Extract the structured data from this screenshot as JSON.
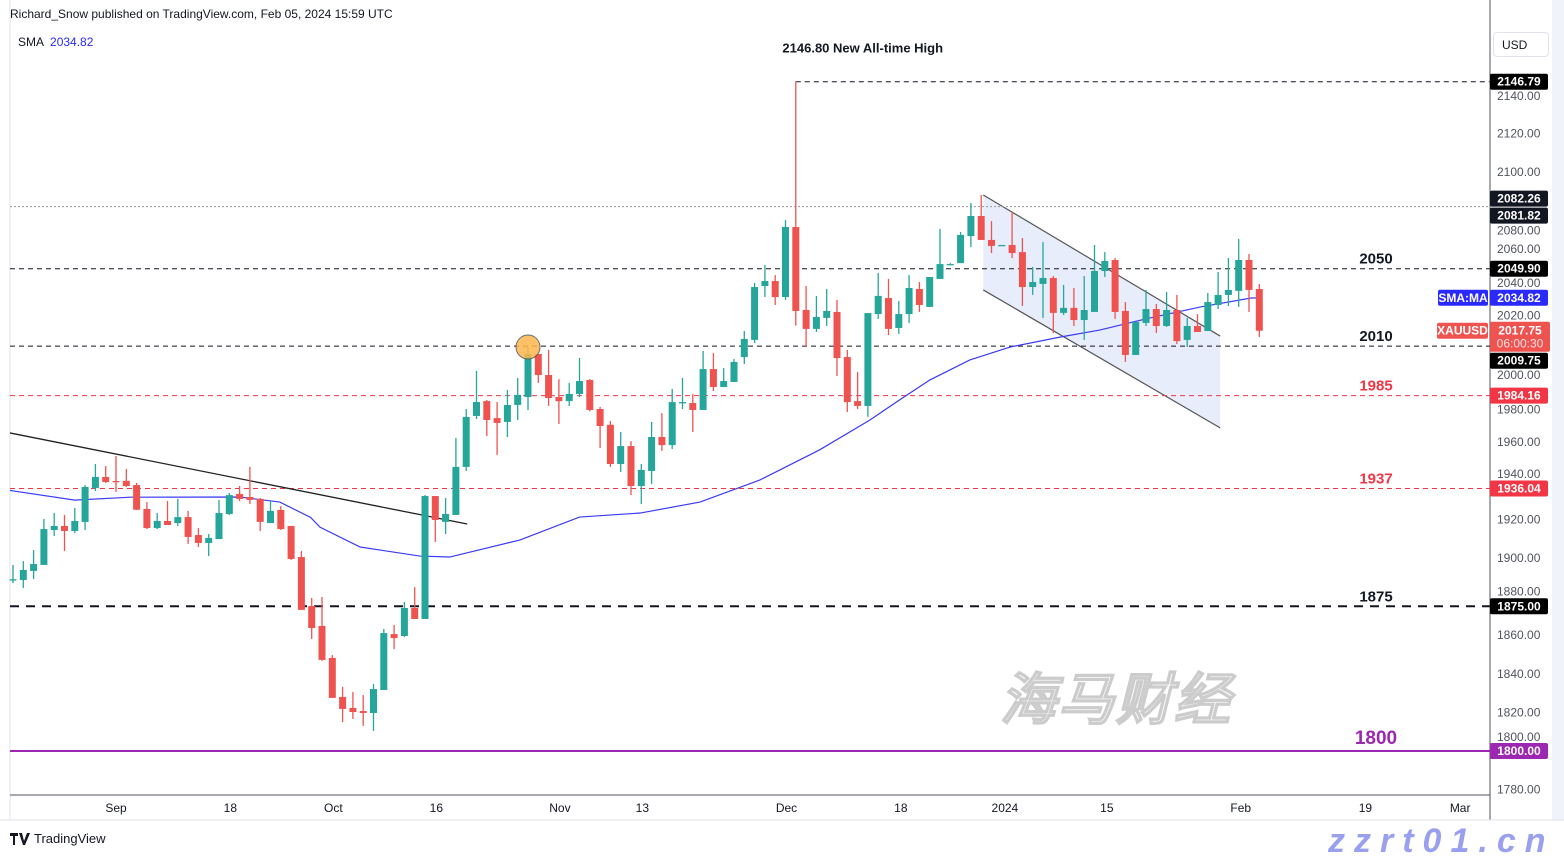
{
  "header": {
    "published": "Richard_Snow published on TradingView.com, Feb 05, 2024 15:59 UTC"
  },
  "legend": {
    "indicator": "SMA",
    "value": "2034.82"
  },
  "currency": "USD",
  "footer": {
    "brand": "TradingView"
  },
  "watermark": {
    "cn": "海马财经",
    "site": "zzrt01.cn"
  },
  "colors": {
    "up": "#26a69a",
    "down": "#ef5350",
    "sma": "#3a3af7",
    "channel_fill": "#e6ebfc",
    "purple": "#9c27b0",
    "red_level": "#f23645"
  },
  "chart_data": {
    "type": "candlestick",
    "symbol": "XAUUSD",
    "ylim": [
      1775,
      2155
    ],
    "y_ticks": [
      "2140.00",
      "2120.00",
      "2100.00",
      "2080.00",
      "2060.00",
      "2040.00",
      "2020.00",
      "2000.00",
      "1980.00",
      "1960.00",
      "1940.00",
      "1920.00",
      "1900.00",
      "1880.00",
      "1860.00",
      "1840.00",
      "1820.00",
      "1800.00",
      "1780.00"
    ],
    "x_ticks": [
      {
        "label": "Sep",
        "bar": 11
      },
      {
        "label": "18",
        "bar": 22.1
      },
      {
        "label": "Oct",
        "bar": 32.1
      },
      {
        "label": "16",
        "bar": 42.1
      },
      {
        "label": "Nov",
        "bar": 54.1
      },
      {
        "label": "13",
        "bar": 62.1
      },
      {
        "label": "Dec",
        "bar": 76.1
      },
      {
        "label": "18",
        "bar": 87.2
      },
      {
        "label": "2024",
        "bar": 97.3
      },
      {
        "label": "15",
        "bar": 107.2
      },
      {
        "label": "Feb",
        "bar": 120.2
      },
      {
        "label": "19",
        "bar": 132.3
      },
      {
        "label": "Mar",
        "bar": 141.5
      }
    ],
    "ohlc": [
      [
        1888.6,
        1896.4,
        1887.0,
        1889.0
      ],
      [
        1888.6,
        1898.4,
        1884.5,
        1893.8
      ],
      [
        1893.3,
        1904.1,
        1889.1,
        1896.9
      ],
      [
        1896.4,
        1920.2,
        1896.4,
        1915.0
      ],
      [
        1914.5,
        1923.3,
        1911.4,
        1916.6
      ],
      [
        1916.6,
        1922.3,
        1903.6,
        1914.0
      ],
      [
        1914.0,
        1925.9,
        1912.9,
        1919.2
      ],
      [
        1918.7,
        1937.8,
        1914.5,
        1936.8
      ],
      [
        1936.3,
        1948.7,
        1934.7,
        1942.0
      ],
      [
        1942.0,
        1947.7,
        1938.9,
        1939.4
      ],
      [
        1939.9,
        1952.8,
        1934.2,
        1939.4
      ],
      [
        1940.0,
        1946.1,
        1936.8,
        1937.3
      ],
      [
        1937.8,
        1938.9,
        1924.9,
        1925.0
      ],
      [
        1925.4,
        1929.0,
        1915.0,
        1915.5
      ],
      [
        1915.5,
        1923.3,
        1915.0,
        1919.2
      ],
      [
        1919.2,
        1929.5,
        1917.1,
        1917.1
      ],
      [
        1918.1,
        1930.6,
        1916.6,
        1921.2
      ],
      [
        1921.2,
        1924.4,
        1907.3,
        1910.9
      ],
      [
        1911.9,
        1915.5,
        1905.7,
        1907.8
      ],
      [
        1907.8,
        1912.4,
        1901.0,
        1910.4
      ],
      [
        1909.8,
        1930.1,
        1909.8,
        1923.3
      ],
      [
        1922.8,
        1933.7,
        1922.3,
        1932.6
      ],
      [
        1933.2,
        1937.3,
        1929.5,
        1930.6
      ],
      [
        1931.6,
        1947.2,
        1928.0,
        1930.1
      ],
      [
        1930.6,
        1931.1,
        1914.0,
        1918.7
      ],
      [
        1918.1,
        1929.5,
        1918.1,
        1924.4
      ],
      [
        1924.9,
        1926.9,
        1914.5,
        1915.0
      ],
      [
        1916.6,
        1916.6,
        1899.0,
        1899.5
      ],
      [
        1900.5,
        1903.6,
        1873.1,
        1873.1
      ],
      [
        1875.1,
        1879.3,
        1858.0,
        1863.7
      ],
      [
        1864.8,
        1879.8,
        1846.7,
        1847.2
      ],
      [
        1848.2,
        1849.7,
        1827.5,
        1827.5
      ],
      [
        1828.0,
        1833.2,
        1815.0,
        1821.8
      ],
      [
        1822.3,
        1830.6,
        1816.6,
        1820.2
      ],
      [
        1820.7,
        1829.0,
        1813.0,
        1819.7
      ],
      [
        1819.7,
        1834.7,
        1810.4,
        1832.1
      ],
      [
        1831.6,
        1863.2,
        1831.6,
        1861.1
      ],
      [
        1860.6,
        1865.3,
        1852.8,
        1858.5
      ],
      [
        1859.6,
        1877.2,
        1859.1,
        1874.1
      ],
      [
        1874.1,
        1884.9,
        1868.4,
        1868.4
      ],
      [
        1868.4,
        1932.6,
        1868.4,
        1932.1
      ],
      [
        1932.1,
        1932.1,
        1908.3,
        1919.7
      ],
      [
        1918.7,
        1931.1,
        1912.4,
        1922.8
      ],
      [
        1922.3,
        1962.2,
        1922.3,
        1947.2
      ],
      [
        1947.2,
        1977.2,
        1945.1,
        1973.1
      ],
      [
        1973.6,
        1996.9,
        1972.0,
        1980.8
      ],
      [
        1981.3,
        1981.9,
        1963.2,
        1971.5
      ],
      [
        1972.5,
        1980.8,
        1953.4,
        1970.0
      ],
      [
        1970.5,
        1987.0,
        1962.7,
        1979.3
      ],
      [
        1979.3,
        1993.3,
        1971.5,
        1984.5
      ],
      [
        1983.4,
        2009.3,
        1976.7,
        2005.7
      ],
      [
        2005.7,
        2005.7,
        1990.7,
        1994.8
      ],
      [
        1994.8,
        2007.8,
        1978.8,
        1982.9
      ],
      [
        1983.4,
        1992.7,
        1969.4,
        1981.3
      ],
      [
        1981.3,
        1990.7,
        1978.8,
        1985.0
      ],
      [
        1985.0,
        2003.6,
        1983.4,
        1991.7
      ],
      [
        1992.2,
        1992.7,
        1976.0,
        1976.7
      ],
      [
        1977.2,
        1978.3,
        1957.0,
        1968.4
      ],
      [
        1969.0,
        1971.0,
        1947.2,
        1948.7
      ],
      [
        1948.7,
        1965.3,
        1944.6,
        1958.0
      ],
      [
        1958.0,
        1960.6,
        1932.6,
        1937.3
      ],
      [
        1937.3,
        1948.7,
        1928.0,
        1945.6
      ],
      [
        1945.1,
        1970.5,
        1938.3,
        1962.7
      ],
      [
        1962.7,
        1975.1,
        1955.5,
        1958.5
      ],
      [
        1958.5,
        1987.6,
        1956.5,
        1980.8
      ],
      [
        1980.8,
        1993.3,
        1977.2,
        1980.8
      ],
      [
        1980.3,
        1985.0,
        1965.3,
        1976.7
      ],
      [
        1976.7,
        2007.3,
        1976.7,
        1997.9
      ],
      [
        1997.9,
        2006.2,
        1986.5,
        1988.6
      ],
      [
        1988.6,
        1998.4,
        1988.6,
        1991.7
      ],
      [
        1991.2,
        2003.1,
        1991.2,
        2001.6
      ],
      [
        2004.1,
        2017.6,
        2000.5,
        2013.5
      ],
      [
        2013.0,
        2042.5,
        2011.4,
        2040.4
      ],
      [
        2040.9,
        2051.8,
        2035.2,
        2043.5
      ],
      [
        2043.5,
        2046.6,
        2031.1,
        2035.2
      ],
      [
        2035.2,
        2075.1,
        2033.7,
        2071.5
      ],
      [
        2071.5,
        2146.8,
        2020.4,
        2028.0
      ],
      [
        2028.5,
        2040.9,
        2009.8,
        2018.7
      ],
      [
        2018.7,
        2035.8,
        2017.1,
        2024.9
      ],
      [
        2024.4,
        2039.4,
        2020.2,
        2028.0
      ],
      [
        2027.5,
        2033.7,
        1994.3,
        2003.6
      ],
      [
        2004.1,
        2007.8,
        1975.6,
        1980.8
      ],
      [
        1981.3,
        1996.4,
        1977.2,
        1978.8
      ],
      [
        1978.8,
        2026.9,
        1973.1,
        2026.9
      ],
      [
        2026.4,
        2047.7,
        2023.8,
        2035.8
      ],
      [
        2034.7,
        2044.6,
        2015.5,
        2018.7
      ],
      [
        2019.2,
        2033.2,
        2016.1,
        2026.4
      ],
      [
        2026.4,
        2046.6,
        2021.8,
        2039.9
      ],
      [
        2039.4,
        2043.0,
        2027.5,
        2031.1
      ],
      [
        2030.1,
        2045.6,
        2030.1,
        2045.6
      ],
      [
        2044.6,
        2070.5,
        2044.6,
        2052.3
      ],
      [
        2052.3,
        2052.8,
        2051.8,
        2052.3
      ],
      [
        2052.8,
        2068.9,
        2052.8,
        2067.4
      ],
      [
        2066.8,
        2083.9,
        2061.1,
        2077.2
      ],
      [
        2077.2,
        2088.1,
        2064.8,
        2064.8
      ],
      [
        2064.8,
        2074.6,
        2058.0,
        2061.7
      ],
      [
        2062.2,
        2062.2,
        2062.2,
        2062.2
      ],
      [
        2062.2,
        2079.3,
        2055.4,
        2058.0
      ],
      [
        2058.5,
        2065.8,
        2030.6,
        2040.4
      ],
      [
        2040.4,
        2050.8,
        2036.3,
        2043.0
      ],
      [
        2042.0,
        2063.7,
        2024.4,
        2045.1
      ],
      [
        2045.1,
        2046.1,
        2016.6,
        2027.0
      ],
      [
        2027.0,
        2041.5,
        2025.9,
        2029.6
      ],
      [
        2029.6,
        2039.9,
        2020.2,
        2023.3
      ],
      [
        2023.3,
        2046.1,
        2013.0,
        2028.5
      ],
      [
        2027.5,
        2062.2,
        2027.5,
        2048.7
      ],
      [
        2048.7,
        2058.5,
        2045.6,
        2053.9
      ],
      [
        2054.4,
        2055.4,
        2023.8,
        2027.5
      ],
      [
        2028.0,
        2032.6,
        2001.6,
        2005.2
      ],
      [
        2005.2,
        2022.3,
        2005.2,
        2022.3
      ],
      [
        2021.8,
        2038.9,
        2020.2,
        2029.0
      ],
      [
        2029.0,
        2031.6,
        2016.6,
        2020.2
      ],
      [
        2020.2,
        2037.8,
        2019.7,
        2028.5
      ],
      [
        2028.5,
        2036.3,
        2010.9,
        2012.4
      ],
      [
        2013.0,
        2024.4,
        2009.3,
        2020.2
      ],
      [
        2020.2,
        2026.4,
        2017.1,
        2017.1
      ],
      [
        2017.6,
        2037.3,
        2017.6,
        2032.6
      ],
      [
        2031.1,
        2048.2,
        2029.0,
        2036.3
      ],
      [
        2036.3,
        2055.4,
        2030.6,
        2038.9
      ],
      [
        2038.4,
        2065.3,
        2030.1,
        2054.4
      ],
      [
        2054.4,
        2057.5,
        2027.5,
        2038.9
      ],
      [
        2039.4,
        2042.0,
        2014.5,
        2017.75
      ]
    ],
    "sma": {
      "name": "SMA",
      "points": [
        [
          0.7,
          1935
        ],
        [
          7,
          1930
        ],
        [
          12.4,
          1931.5
        ],
        [
          23.0,
          1931.6
        ],
        [
          26.9,
          1929
        ],
        [
          29.9,
          1921
        ],
        [
          30.8,
          1916
        ],
        [
          34.7,
          1905.7
        ],
        [
          40.5,
          1901
        ],
        [
          43.4,
          1900.5
        ],
        [
          50.2,
          1909.3
        ],
        [
          56.0,
          1921.2
        ],
        [
          61.9,
          1923.3
        ],
        [
          67.7,
          1929
        ],
        [
          73.5,
          1940.4
        ],
        [
          79.3,
          1956
        ],
        [
          84.2,
          1971.5
        ],
        [
          87.1,
          1982
        ],
        [
          90.0,
          1992.2
        ],
        [
          93.9,
          2002.6
        ],
        [
          97.8,
          2009.3
        ],
        [
          102.7,
          2014.5
        ],
        [
          106.5,
          2018.1
        ],
        [
          111.4,
          2024.4
        ],
        [
          116.3,
          2030.1
        ],
        [
          121.2,
          2034.7
        ],
        [
          122,
          2034.82
        ]
      ]
    },
    "levels": [
      {
        "price": 2146.79,
        "badge": "2146.79",
        "style": "dashed",
        "color": "#131722",
        "from_bar": 77,
        "label": ""
      },
      {
        "price": 2082.04,
        "badge": "2082.26",
        "badge2": "2081.82",
        "style": "dotted",
        "color": "#9598a1",
        "label": ""
      },
      {
        "price": 2049.9,
        "badge": "2049.90",
        "style": "dashed",
        "color": "#131722",
        "label": "2050"
      },
      {
        "price": 2009.75,
        "badge": "2009.75",
        "style": "dashed",
        "color": "#131722",
        "label": "2010"
      },
      {
        "price": 1984.16,
        "badge": "1984.16",
        "style": "dashed",
        "color": "#f23645",
        "label": "1985"
      },
      {
        "price": 1936.04,
        "badge": "1936.04",
        "style": "dashed",
        "color": "#f23645",
        "label": "1937"
      },
      {
        "price": 1875.0,
        "badge": "1875.00",
        "style": "thick-dashed",
        "color": "#131722",
        "label": "1875"
      },
      {
        "price": 1800.0,
        "badge": "1800.00",
        "style": "solid",
        "color": "#9c27b0",
        "label": "1800"
      }
    ],
    "trendline": {
      "from": [
        0.7,
        1964.8
      ],
      "to": [
        45.1,
        1917.6
      ]
    },
    "channel": {
      "upper": [
        [
          95.2,
          2088.1
        ],
        [
          118.2,
          2015.0
        ]
      ],
      "lower": [
        [
          95.2,
          2038.9
        ],
        [
          118.2,
          1967.4
        ]
      ]
    },
    "highlight_circle": {
      "bar": 51,
      "price": 2009.3
    },
    "annotation": {
      "text": "2146.80 New All-time High",
      "bar": 83.5,
      "price": 2162
    },
    "sma_badge": {
      "name": "SMA:MA",
      "value": "2034.82"
    },
    "last_price": {
      "name": "XAUUSD",
      "value": "2017.75",
      "countdown": "06:00:30"
    }
  }
}
